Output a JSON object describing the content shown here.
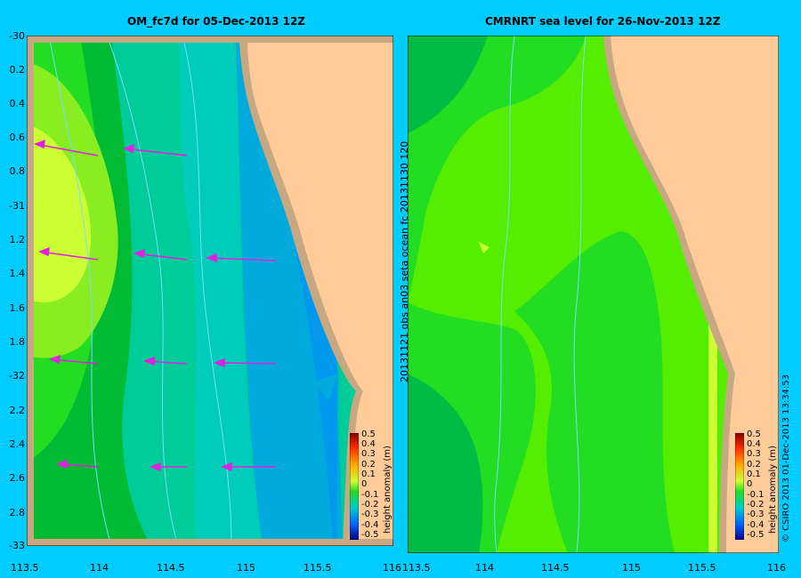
{
  "left_panel": {
    "title": "OM_fc7d for 05-Dec-2013 12Z",
    "y_labels": [
      "-30",
      "0.2",
      "0.4",
      "0.6",
      "0.8",
      "-31",
      "1.2",
      "1.4",
      "1.6",
      "1.8",
      "-32",
      "2.2",
      "2.4",
      "2.6",
      "2.8",
      "-33"
    ],
    "x_labels": [
      "113.5",
      "114",
      "114.5",
      "115",
      "115.5",
      "116"
    ]
  },
  "right_panel": {
    "title": "CMRNRT sea level  for 26-Nov-2013 12Z",
    "x_labels": [
      "113.5",
      "114",
      "114.5",
      "115",
      "115.5",
      "116"
    ],
    "vertical_text": "20131121 obs  an03  seta    ocean  fc  20131130  120"
  },
  "colorbar": {
    "label": "height anomaly (m)",
    "ticks": [
      "0.5",
      "0.4",
      "0.3",
      "0.2",
      "0.1",
      "0",
      "-0.1",
      "-0.2",
      "-0.3",
      "-0.4",
      "-0.5"
    ]
  },
  "credit": "© CSIRO 2013   01-Dec-2013 13:34:53",
  "colors": {
    "background": "#00ccff",
    "land": "#ffcc99",
    "shore": "#c8a882",
    "arrow": "#e020e0"
  }
}
